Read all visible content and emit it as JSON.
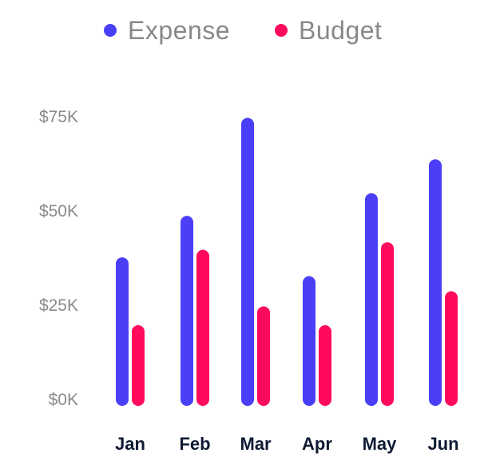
{
  "chart_data": {
    "type": "bar",
    "categories": [
      "Jan",
      "Feb",
      "Mar",
      "Apr",
      "May",
      "Jun"
    ],
    "series": [
      {
        "name": "Expense",
        "color": "#4a3ff7",
        "values": [
          36,
          47,
          73,
          31,
          53,
          62
        ]
      },
      {
        "name": "Budget",
        "color": "#ff0a5c",
        "values": [
          18,
          38,
          23,
          18,
          40,
          27
        ]
      }
    ],
    "units": "thousands of dollars",
    "yticks": [
      "$0K",
      "$25K",
      "$50K",
      "$75K"
    ],
    "ytick_values": [
      0,
      25,
      50,
      75
    ],
    "ylim": [
      0,
      75
    ],
    "grid": false,
    "legend_position": "top"
  }
}
